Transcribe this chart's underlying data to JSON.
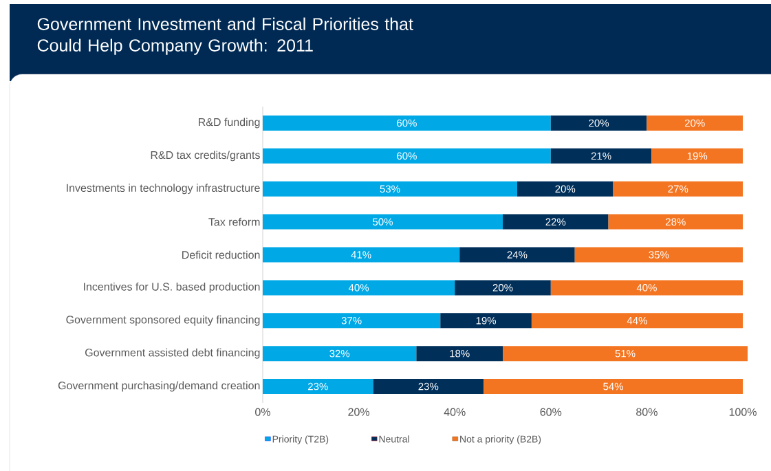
{
  "chart_data": {
    "type": "bar",
    "orientation": "horizontal",
    "stacked": true,
    "title": "Government Investment and Fiscal Priorities that Could Help Company Growth: 2011",
    "categories": [
      "R&D funding",
      "R&D tax credits/grants",
      "Investments in technology infrastructure",
      "Tax reform",
      "Deficit reduction",
      "Incentives for U.S. based production",
      "Government sponsored equity financing",
      "Government assisted debt financing",
      "Government purchasing/demand creation"
    ],
    "series": [
      {
        "name": "Priority (T2B)",
        "color": "#00a9e6",
        "values": [
          60,
          60,
          53,
          50,
          41,
          40,
          37,
          32,
          23
        ],
        "value_labels": [
          "60%",
          "60%",
          "53%",
          "50%",
          "41%",
          "40%",
          "37%",
          "32%",
          "23%"
        ]
      },
      {
        "name": "Neutral",
        "color": "#002f5a",
        "values": [
          20,
          21,
          20,
          22,
          24,
          20,
          19,
          18,
          23
        ],
        "value_labels": [
          "20%",
          "21%",
          "20%",
          "22%",
          "24%",
          "20%",
          "19%",
          "18%",
          "23%"
        ]
      },
      {
        "name": "Not a priority (B2B)",
        "color": "#f47521",
        "values": [
          20,
          19,
          27,
          28,
          35,
          40,
          44,
          51,
          54
        ],
        "value_labels": [
          "20%",
          "19%",
          "27%",
          "28%",
          "35%",
          "40%",
          "44%",
          "51%",
          "54%"
        ]
      }
    ],
    "xlim": [
      0,
      101
    ],
    "xticks": [
      {
        "value": 0,
        "label": "0%"
      },
      {
        "value": 20,
        "label": "20%"
      },
      {
        "value": 40,
        "label": "40%"
      },
      {
        "value": 60,
        "label": "60%"
      },
      {
        "value": 80,
        "label": "80%"
      },
      {
        "value": 100,
        "label": "100%"
      }
    ],
    "grid": false,
    "legend": "bottom"
  }
}
